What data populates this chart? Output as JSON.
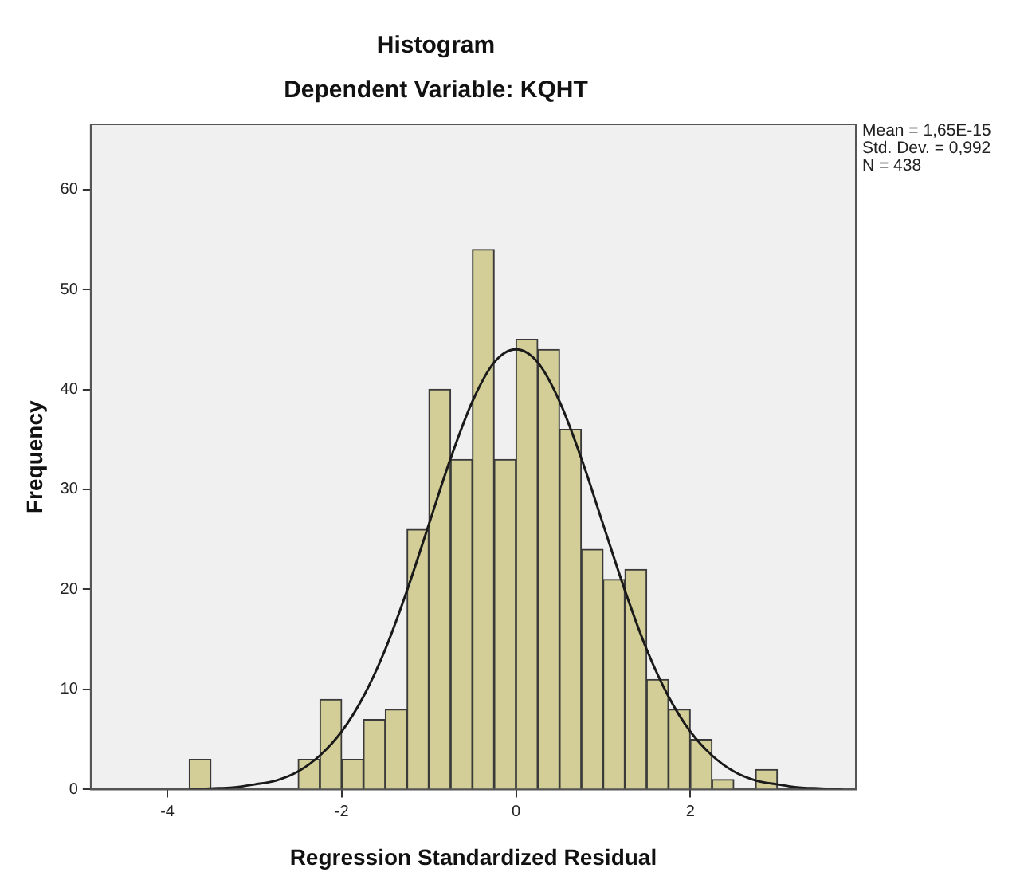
{
  "chart_data": {
    "type": "histogram",
    "title": "Histogram",
    "subtitle": "Dependent Variable: KQHT",
    "xlabel": "Regression Standardized Residual",
    "ylabel": "Frequency",
    "annotations": [
      "Mean = 1,65E-15\nStd. Dev. = 0,992\nN = 438"
    ],
    "xlim": [
      -4.88,
      3.9
    ],
    "xticks": [
      -4,
      -2,
      0,
      2
    ],
    "ylim": [
      0,
      66.5
    ],
    "yticks": [
      0,
      10,
      20,
      30,
      40,
      50,
      60
    ],
    "grid": false,
    "legend": false,
    "series": [
      {
        "type": "histogram",
        "color": "#d3ce97",
        "bins": [
          -3.75,
          -3.5,
          -3.25,
          -3,
          -2.75,
          -2.5,
          -2.25,
          -2,
          -1.75,
          -1.5,
          -1.25,
          -1,
          -0.75,
          -0.5,
          -0.25,
          0,
          0.25,
          0.5,
          0.75,
          1,
          1.25,
          1.5,
          1.75,
          2,
          2.25,
          2.5,
          2.75,
          3
        ],
        "values": [
          3,
          0,
          0,
          0,
          0,
          3,
          9,
          3,
          7,
          8,
          26,
          40,
          33,
          54,
          33,
          45,
          44,
          36,
          24,
          21,
          22,
          11,
          8,
          5,
          1,
          0,
          2
        ]
      },
      {
        "type": "line",
        "color": "#1a1a1a",
        "x": [
          -3.75,
          -3.5,
          -3.25,
          -3,
          -2.75,
          -2.5,
          -2.25,
          -2,
          -1.75,
          -1.5,
          -1.25,
          -1,
          -0.75,
          -0.5,
          -0.25,
          0,
          0.25,
          0.5,
          0.75,
          1,
          1.25,
          1.5,
          1.75,
          2,
          2.25,
          2.5,
          2.75,
          3,
          3.25,
          3.5,
          3.75
        ],
        "values": [
          0,
          0.1,
          0.2,
          0.5,
          0.9,
          1.8,
          3.4,
          5.8,
          9.3,
          14,
          19.9,
          26.5,
          33.1,
          38.8,
          42.7,
          44,
          42.7,
          38.8,
          33.1,
          26.5,
          19.9,
          14,
          9.3,
          5.8,
          3.4,
          1.8,
          0.9,
          0.5,
          0.2,
          0.1,
          0
        ]
      }
    ]
  }
}
